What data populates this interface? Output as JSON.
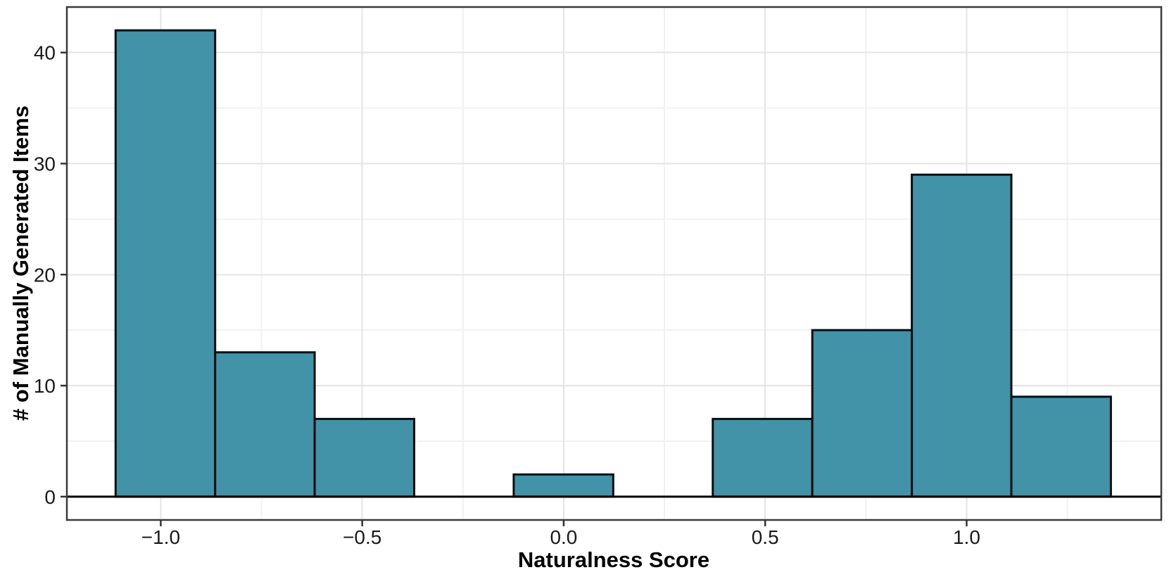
{
  "figure": {
    "x_axis_title": "Naturalness Score",
    "y_axis_title": "# of Manually Generated Items"
  },
  "chart_data": {
    "type": "bar",
    "subtype": "histogram",
    "title": "",
    "xlabel": "Naturalness Score",
    "ylabel": "# of Manually Generated Items",
    "bin_width": 0.247,
    "bin_edges": [
      -1.112,
      -0.865,
      -0.618,
      -0.371,
      -0.124,
      0.123,
      0.37,
      0.617,
      0.864,
      1.111,
      1.358
    ],
    "counts": [
      42,
      13,
      7,
      0,
      2,
      0,
      7,
      15,
      29,
      9
    ],
    "total_items": 124,
    "x_ticks": {
      "values": [
        -1.0,
        -0.5,
        0.0,
        0.5,
        1.0
      ],
      "labels": [
        "−1.0",
        "−0.5",
        "0.0",
        "0.5",
        "1.0"
      ]
    },
    "x_minor_ticks": [
      -0.75,
      -0.25,
      0.25,
      0.75,
      1.25
    ],
    "y_ticks": {
      "values": [
        0,
        10,
        20,
        30,
        40
      ],
      "labels": [
        "0",
        "10",
        "20",
        "30",
        "40"
      ]
    },
    "y_minor_ticks": [
      5,
      15,
      25,
      35
    ],
    "xlim": [
      -1.233,
      1.483
    ],
    "ylim": [
      -2.1,
      44.1
    ],
    "grid": "major+minor",
    "legend": "none",
    "zero_line": true,
    "colors": {
      "bar_fill": "#4292A8",
      "bar_stroke": "#0d0d0d",
      "grid_major": "#e4e4e4",
      "grid_minor": "#f1f1f1",
      "panel_border": "#3a3a3a",
      "zero_line": "#000000",
      "tick_mark": "#333333",
      "tick_text": "#1a1a1a"
    }
  }
}
